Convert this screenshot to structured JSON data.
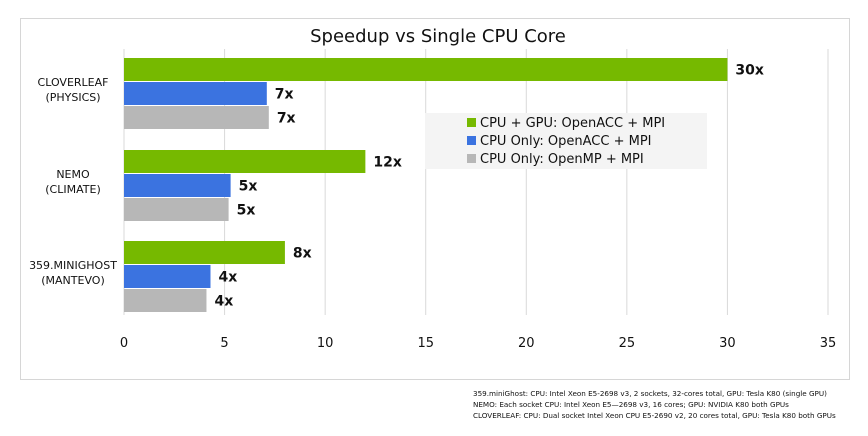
{
  "chart_data": {
    "type": "bar",
    "orientation": "horizontal",
    "title": "Speedup vs Single CPU Core",
    "categories": [
      [
        "CLOVERLEAF",
        "(PHYSICS)"
      ],
      [
        "NEMO",
        "(CLIMATE)"
      ],
      [
        "359.MINIGHOST",
        "(MANTEVO)"
      ]
    ],
    "series": [
      {
        "name": "CPU + GPU: OpenACC + MPI",
        "color": "#76b900",
        "values": [
          30,
          12,
          8
        ],
        "labels": [
          "30x",
          "12x",
          "8x"
        ]
      },
      {
        "name": "CPU Only: OpenACC + MPI",
        "color": "#3b73e0",
        "values": [
          7.1,
          5.3,
          4.3
        ],
        "labels": [
          "7x",
          "5x",
          "4x"
        ]
      },
      {
        "name": "CPU Only: OpenMP + MPI",
        "color": "#b7b7b7",
        "values": [
          7.2,
          5.2,
          4.1
        ],
        "labels": [
          "7x",
          "5x",
          "4x"
        ]
      }
    ],
    "xlim": [
      0,
      35
    ],
    "xticks": [
      "0",
      "5",
      "10",
      "15",
      "20",
      "25",
      "30",
      "35"
    ],
    "grid": "vertical",
    "legend_position": "right-middle"
  },
  "footnotes": [
    "359.miniGhost: CPU: Intel Xeon E5-2698 v3, 2 sockets, 32-cores total, GPU: Tesla K80 (single GPU)",
    "NEMO: Each socket CPU: Intel Xeon E5—2698 v3, 16 cores; GPU: NVIDIA K80 both GPUs",
    "CLOVERLEAF: CPU: Dual socket Intel Xeon CPU E5-2690 v2, 20 cores total, GPU: Tesla K80 both GPUs"
  ]
}
